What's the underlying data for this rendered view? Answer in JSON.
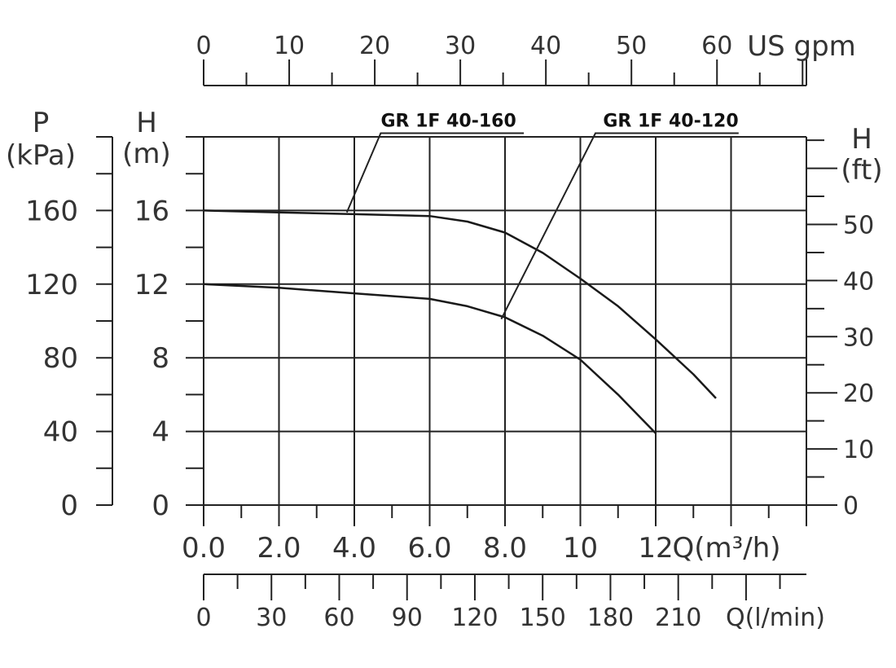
{
  "chart_data": {
    "type": "line",
    "xlabel": "Q(m³/h)",
    "ylabel": "H (m)",
    "x_ticks": [
      "0.0",
      "2.0",
      "4.0",
      "6.0",
      "8.0",
      "10",
      "12"
    ],
    "y_ticks": [
      "0",
      "4",
      "8",
      "12",
      "16"
    ],
    "xlim": [
      0,
      16
    ],
    "ylim": [
      0,
      20
    ],
    "grid": true,
    "series": [
      {
        "name": "GR 1F 40-160",
        "x": [
          0,
          2,
          4,
          6,
          7,
          8,
          9,
          10,
          11,
          12,
          13,
          13.6
        ],
        "y": [
          16,
          15.9,
          15.8,
          15.7,
          15.4,
          14.8,
          13.7,
          12.3,
          10.8,
          9.0,
          7.1,
          5.8
        ]
      },
      {
        "name": "GR 1F 40-120",
        "x": [
          0,
          2,
          4,
          6,
          7,
          8,
          9,
          10,
          11,
          12
        ],
        "y": [
          12,
          11.8,
          11.5,
          11.2,
          10.8,
          10.2,
          9.2,
          7.9,
          6.0,
          3.9
        ]
      }
    ],
    "series_labels": [
      {
        "text": "GR 1F 40-160",
        "x": 6.5,
        "y": 20.2,
        "line": [
          [
            3.8,
            15.9
          ],
          [
            4.7,
            20.2
          ],
          [
            8.5,
            20.2
          ]
        ]
      },
      {
        "text": "GR 1F 40-120",
        "x": 12.4,
        "y": 20.2,
        "line": [
          [
            7.9,
            10.1
          ],
          [
            10.4,
            20.2
          ],
          [
            14.2,
            20.2
          ]
        ]
      }
    ],
    "axes": {
      "pressure": {
        "title_line1": "P",
        "title_line2": "(kPa)",
        "ticks": [
          "0",
          "40",
          "80",
          "120",
          "160"
        ],
        "range": [
          0,
          200
        ]
      },
      "head_m": {
        "title_line1": "H",
        "title_line2": "(m)"
      },
      "head_ft": {
        "title_line1": "H",
        "title_line2": "(ft)",
        "ticks": [
          "0",
          "10",
          "20",
          "30",
          "40",
          "50"
        ],
        "range": [
          0,
          65.6
        ]
      },
      "us_gpm": {
        "label": "US gpm",
        "ticks": [
          "0",
          "10",
          "20",
          "30",
          "40",
          "50",
          "60"
        ],
        "range": [
          0,
          70.45
        ]
      },
      "l_min": {
        "label": "Q(l/min)",
        "ticks": [
          "0",
          "30",
          "60",
          "90",
          "120",
          "150",
          "180",
          "210"
        ],
        "range": [
          0,
          266.7
        ]
      }
    }
  }
}
